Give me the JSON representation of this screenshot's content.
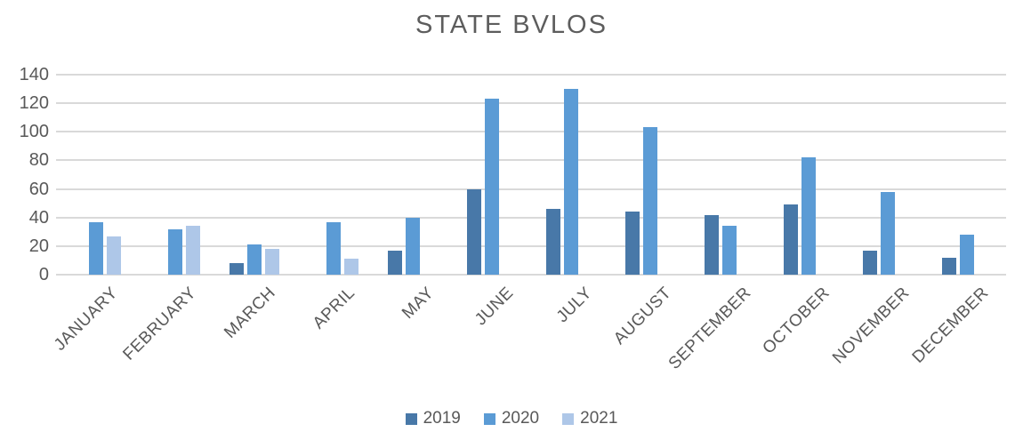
{
  "page": {
    "background": "#ffffff",
    "text_color": "#595959",
    "gridline_color": "#d9d9d9"
  },
  "chart_data": {
    "type": "bar",
    "title": "STATE BVLOS",
    "categories": [
      "JANUARY",
      "FEBRUARY",
      "MARCH",
      "APRIL",
      "MAY",
      "JUNE",
      "JULY",
      "AUGUST",
      "SEPTEMBER",
      "OCTOBER",
      "NOVEMBER",
      "DECEMBER"
    ],
    "series": [
      {
        "name": "2019",
        "color": "#4878A8",
        "values": [
          null,
          null,
          8,
          null,
          17,
          60,
          46,
          44,
          42,
          49,
          17,
          12
        ]
      },
      {
        "name": "2020",
        "color": "#5B9BD5",
        "values": [
          37,
          32,
          21,
          37,
          40,
          123,
          130,
          103,
          34,
          82,
          58,
          28
        ]
      },
      {
        "name": "2021",
        "color": "#AEC7E8",
        "values": [
          27,
          34,
          18,
          11,
          null,
          null,
          null,
          null,
          null,
          null,
          null,
          null
        ]
      }
    ],
    "y_ticks": [
      0,
      20,
      40,
      60,
      80,
      100,
      120,
      140
    ],
    "ylim": [
      0,
      140
    ],
    "grid": true,
    "legend_position": "bottom",
    "xlabel": "",
    "ylabel": ""
  }
}
